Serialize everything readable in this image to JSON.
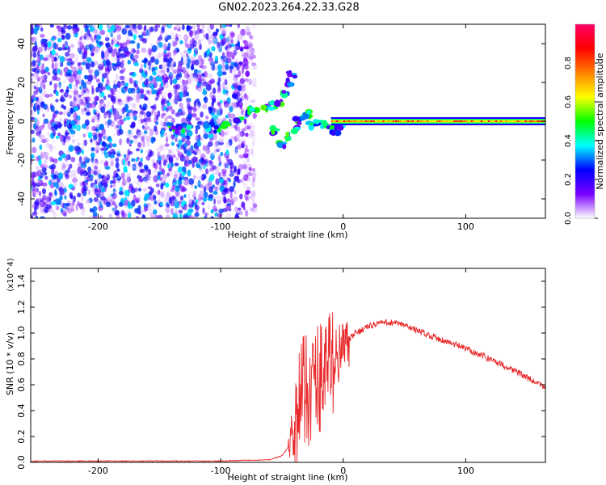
{
  "title": "GN02.2023.264.22.33.G28",
  "colorbar": {
    "label": "Normalized spectral amplitude",
    "ticks": [
      "0.0",
      "0.2",
      "0.4",
      "0.6",
      "0.8"
    ],
    "range": [
      0,
      1
    ],
    "colors": [
      "#ffffff",
      "#7a00ff",
      "#0000ff",
      "#00ffff",
      "#00ff00",
      "#ffff00",
      "#ff8000",
      "#ff0000",
      "#ff0066"
    ]
  },
  "chart_data": [
    {
      "type": "heatmap",
      "title": "",
      "xlabel": "Height of straight line (km)",
      "ylabel": "Frequency (Hz)",
      "xlim": [
        -255,
        165
      ],
      "ylim": [
        -50,
        50
      ],
      "xticks": [
        -200,
        -100,
        0,
        100
      ],
      "yticks": [
        -40,
        -20,
        0,
        20,
        40
      ],
      "features": {
        "noise_region_x": [
          -255,
          -78
        ],
        "signal_band_x": [
          -10,
          165
        ],
        "signal_band_freq": 0,
        "transition_x": [
          -78,
          -10
        ]
      },
      "color_scale": "Normalized spectral amplitude"
    },
    {
      "type": "line",
      "title": "",
      "xlabel": "Height of straight line (km)",
      "ylabel": "SNR (10 * v/v)",
      "y_scale_note": "(x10^4)",
      "xlim": [
        -255,
        165
      ],
      "ylim": [
        0,
        1.5
      ],
      "xticks": [
        -200,
        -100,
        0,
        100
      ],
      "yticks": [
        0.0,
        0.2,
        0.4,
        0.6,
        0.8,
        1.0,
        1.2,
        1.4
      ],
      "color": "#e8282a",
      "series": [
        {
          "x": [
            -255,
            -200,
            -150,
            -100,
            -60,
            -50,
            -45,
            -40,
            -35,
            -30,
            -25,
            -20,
            -15,
            -10,
            -5,
            0,
            5,
            10,
            20,
            30,
            40,
            50,
            60,
            80,
            100,
            120,
            140,
            160,
            165
          ],
          "values": [
            0.01,
            0.01,
            0.01,
            0.01,
            0.02,
            0.05,
            0.12,
            0.3,
            0.55,
            0.6,
            0.65,
            0.7,
            0.78,
            0.8,
            0.85,
            0.9,
            0.95,
            1.0,
            1.05,
            1.08,
            1.08,
            1.06,
            1.02,
            0.95,
            0.88,
            0.8,
            0.71,
            0.6,
            0.58
          ]
        }
      ]
    }
  ]
}
